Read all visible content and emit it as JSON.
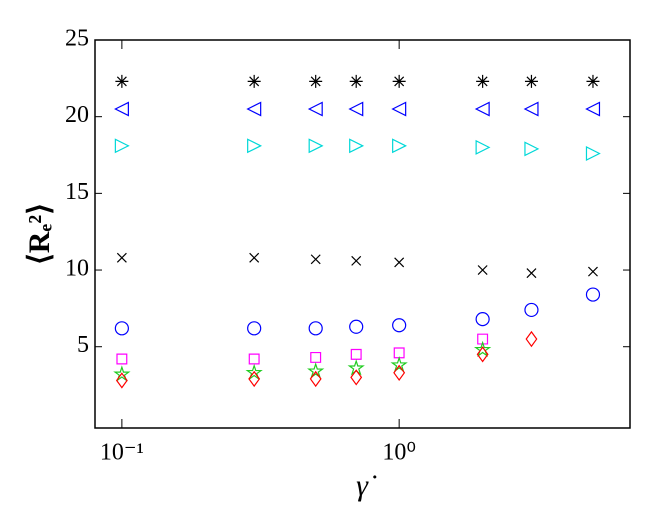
{
  "chart_data": {
    "type": "scatter",
    "xlabel": "γ̇",
    "ylabel": "⟨Rₑ²⟩",
    "x": [
      0.1,
      0.3,
      0.5,
      0.7,
      1,
      2,
      3,
      5
    ],
    "xlim": [
      0.08,
      6.8
    ],
    "xlog": true,
    "xticks": [
      {
        "value": 0.1,
        "label": "10⁻¹"
      },
      {
        "value": 1,
        "label": "10⁰"
      }
    ],
    "ylim": [
      -0.3,
      25
    ],
    "yticks": [
      5,
      10,
      15,
      20,
      25
    ],
    "series": [
      {
        "marker": "asterisk",
        "color": "#000000",
        "values": [
          22.3,
          22.3,
          22.3,
          22.3,
          22.3,
          22.3,
          22.3,
          22.3
        ]
      },
      {
        "marker": "triangle-left",
        "color": "#0000ff",
        "values": [
          20.5,
          20.5,
          20.5,
          20.5,
          20.5,
          20.5,
          20.5,
          20.5
        ]
      },
      {
        "marker": "triangle-right",
        "color": "#00d8d8",
        "values": [
          18.1,
          18.1,
          18.1,
          18.1,
          18.1,
          18.0,
          17.9,
          17.6
        ]
      },
      {
        "marker": "x",
        "color": "#000000",
        "values": [
          10.8,
          10.8,
          10.7,
          10.6,
          10.5,
          10.0,
          9.8,
          9.9
        ]
      },
      {
        "marker": "circle",
        "color": "#0000ff",
        "values": [
          6.2,
          6.2,
          6.2,
          6.3,
          6.4,
          6.8,
          7.4,
          8.4
        ]
      },
      {
        "marker": "square",
        "color": "#ff00ff",
        "values": [
          4.2,
          4.2,
          4.3,
          4.5,
          4.6,
          5.5,
          null,
          null
        ]
      },
      {
        "marker": "star",
        "color": "#22cc22",
        "values": [
          3.2,
          3.3,
          3.4,
          3.6,
          3.8,
          4.8,
          null,
          null
        ]
      },
      {
        "marker": "diamond",
        "color": "#ff0000",
        "values": [
          2.8,
          2.9,
          2.9,
          3.0,
          3.3,
          4.5,
          5.5,
          null
        ]
      }
    ]
  }
}
